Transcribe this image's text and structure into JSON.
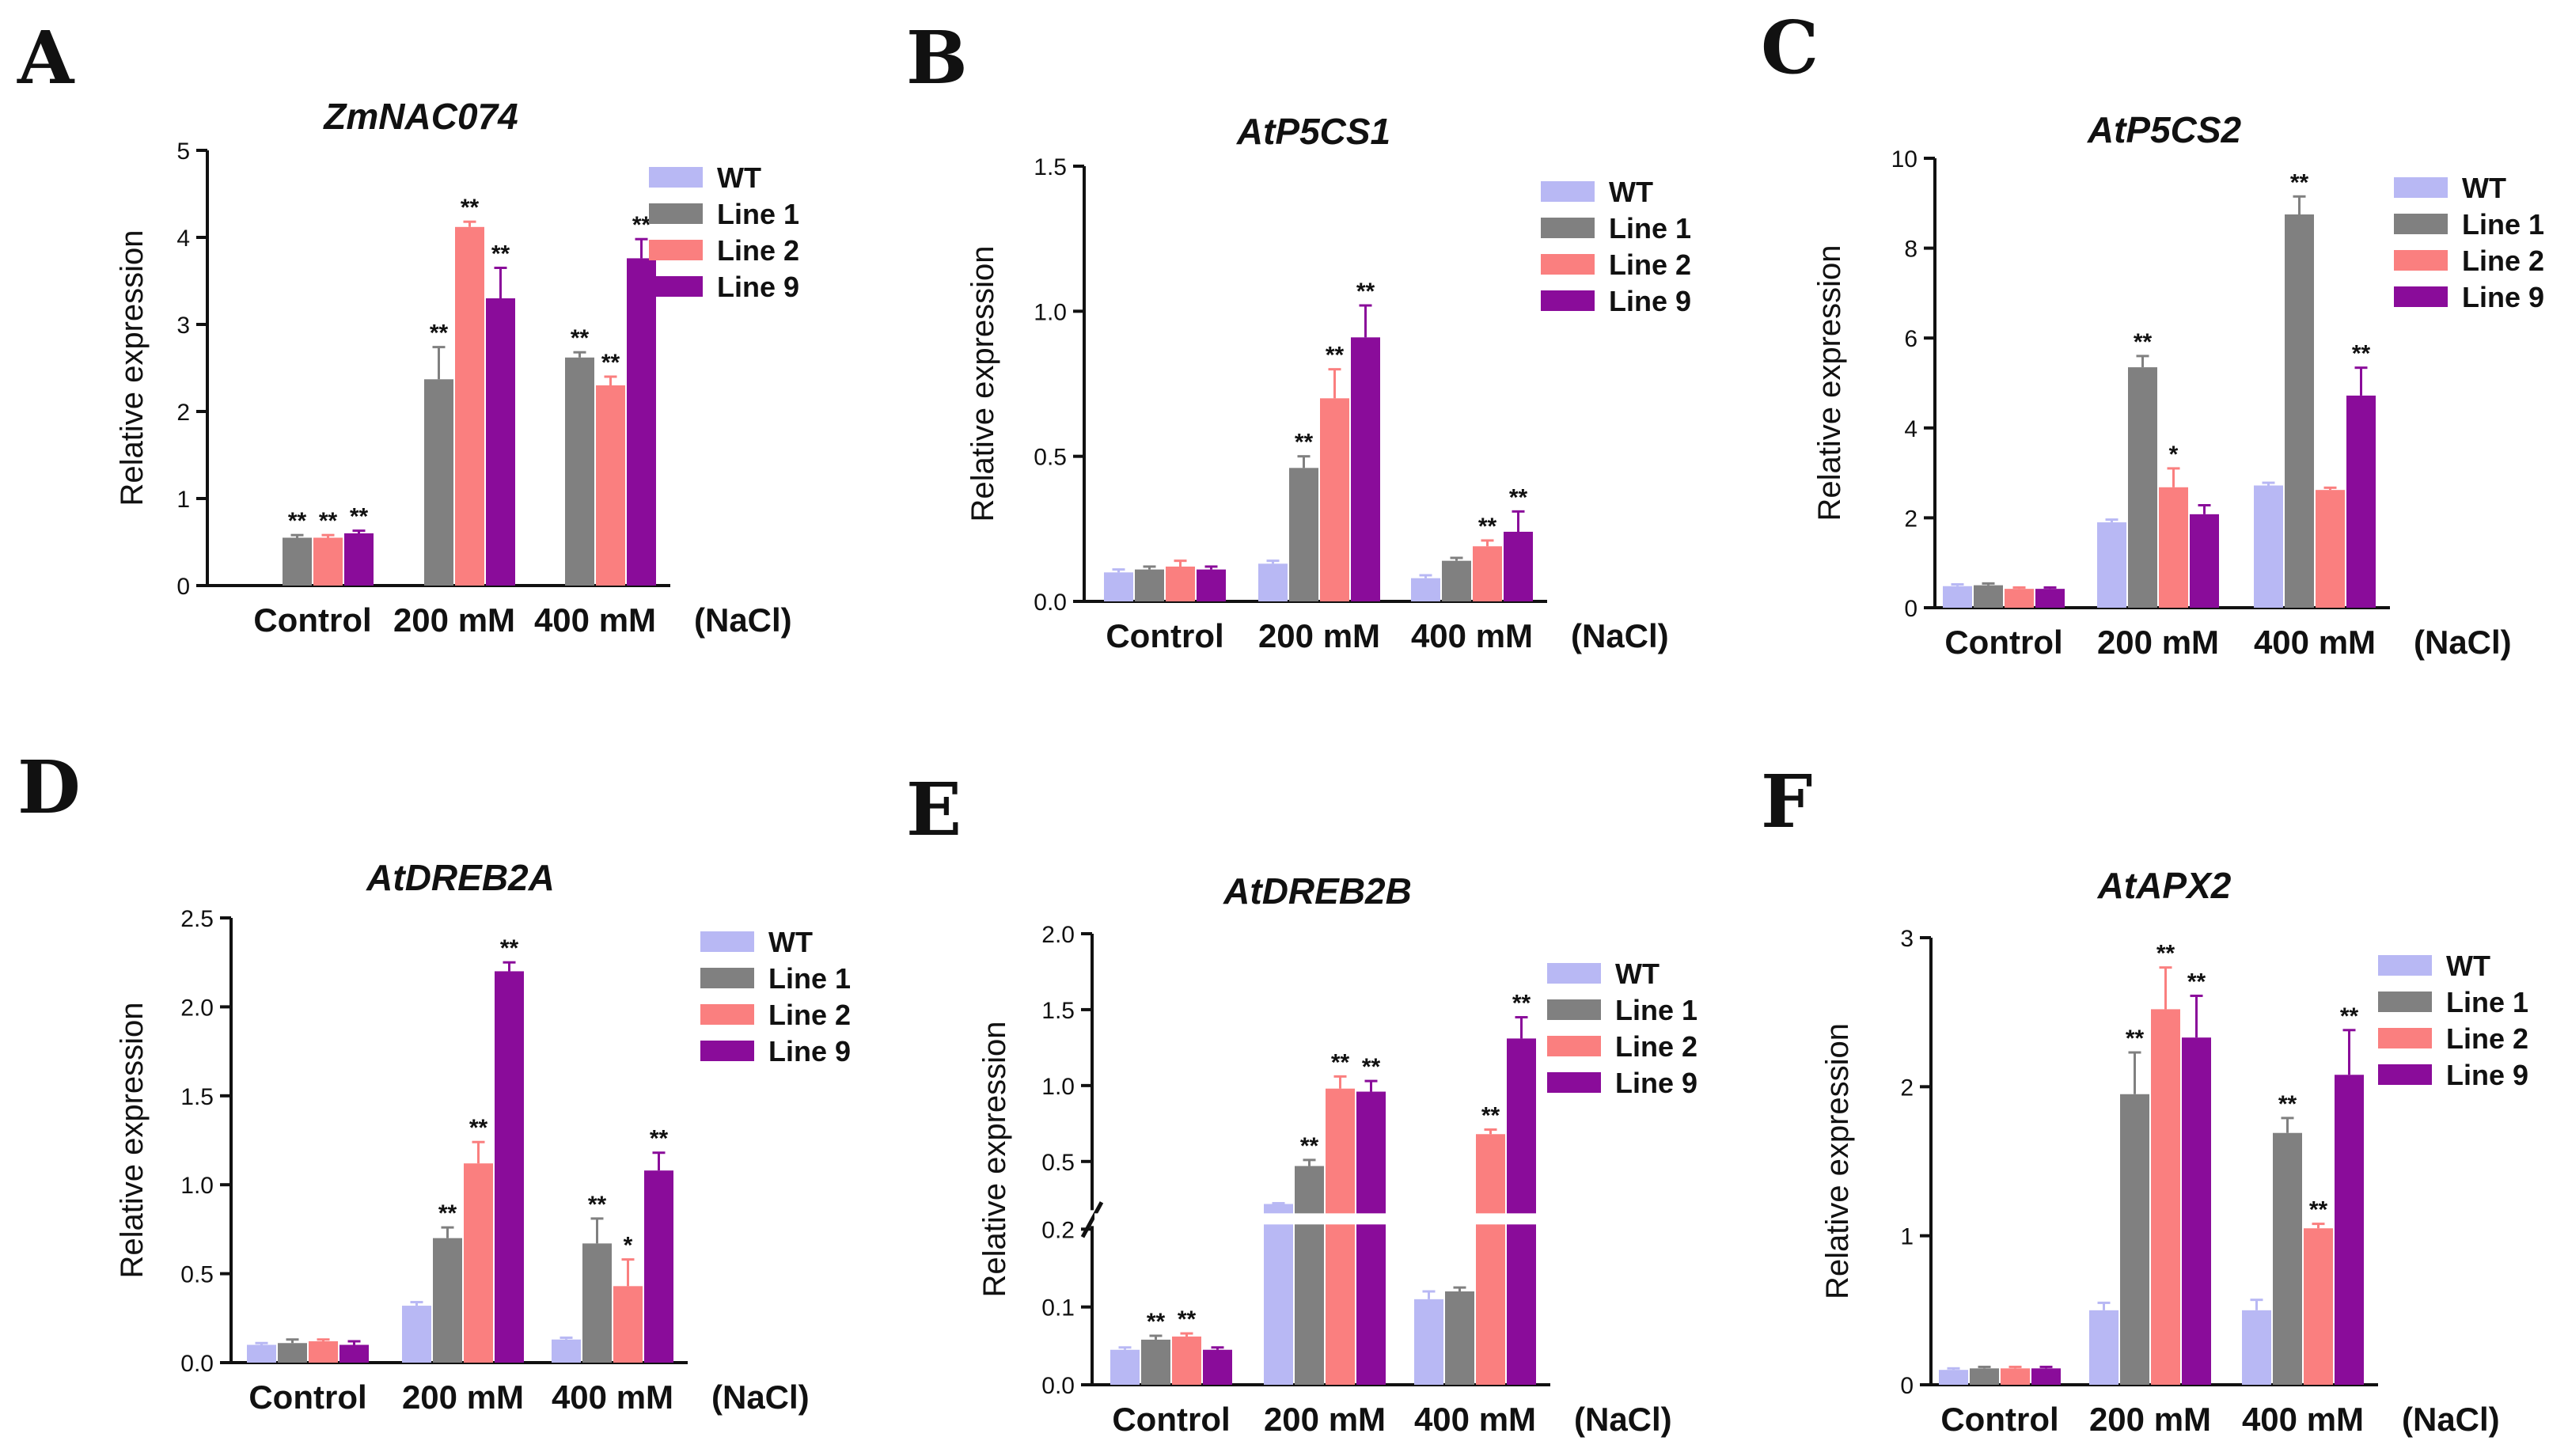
{
  "legend_series": [
    "WT",
    "Line 1",
    "Line 2",
    "Line 9"
  ],
  "colors": {
    "WT": "#b8b8f4",
    "Line 1": "#808080",
    "Line 2": "#fa7f7f",
    "Line 9": "#8a0c9a"
  },
  "chart_data": [
    {
      "letter": "A",
      "type": "bar",
      "title": "ZmNAC074",
      "ylabel": "Relative expression",
      "xunit": "(NaCl)",
      "categories": [
        "Control",
        "200 mM",
        "400 mM"
      ],
      "ylim": [
        0,
        5
      ],
      "yticks": [
        "0",
        "1",
        "2",
        "3",
        "4",
        "5"
      ],
      "series": [
        {
          "name": "WT",
          "values": [
            null,
            null,
            null
          ],
          "errors": [
            0,
            0,
            0
          ],
          "sig": [
            "",
            "",
            ""
          ]
        },
        {
          "name": "Line 1",
          "values": [
            0.55,
            2.37,
            2.62
          ],
          "errors": [
            0.03,
            0.37,
            0.06
          ],
          "sig": [
            "**",
            "**",
            "**"
          ]
        },
        {
          "name": "Line 2",
          "values": [
            0.55,
            4.12,
            2.3
          ],
          "errors": [
            0.03,
            0.06,
            0.1
          ],
          "sig": [
            "**",
            "**",
            "**"
          ]
        },
        {
          "name": "Line 9",
          "values": [
            0.6,
            3.3,
            3.76
          ],
          "errors": [
            0.03,
            0.35,
            0.22
          ],
          "sig": [
            "**",
            "**",
            "**"
          ]
        }
      ]
    },
    {
      "letter": "B",
      "type": "bar",
      "title": "AtP5CS1",
      "ylabel": "Relative expression",
      "xunit": "(NaCl)",
      "categories": [
        "Control",
        "200 mM",
        "400 mM"
      ],
      "ylim": [
        0,
        1.5
      ],
      "yticks": [
        "0.0",
        "0.5",
        "1.0",
        "1.5"
      ],
      "series": [
        {
          "name": "WT",
          "values": [
            0.1,
            0.13,
            0.08
          ],
          "errors": [
            0.01,
            0.01,
            0.01
          ],
          "sig": [
            "",
            "",
            ""
          ]
        },
        {
          "name": "Line 1",
          "values": [
            0.11,
            0.46,
            0.14
          ],
          "errors": [
            0.01,
            0.04,
            0.01
          ],
          "sig": [
            "",
            "**",
            ""
          ]
        },
        {
          "name": "Line 2",
          "values": [
            0.12,
            0.7,
            0.19
          ],
          "errors": [
            0.02,
            0.1,
            0.02
          ],
          "sig": [
            "",
            "**",
            "**"
          ]
        },
        {
          "name": "Line 9",
          "values": [
            0.11,
            0.91,
            0.24
          ],
          "errors": [
            0.01,
            0.11,
            0.07
          ],
          "sig": [
            "",
            "**",
            "**"
          ]
        }
      ]
    },
    {
      "letter": "C",
      "type": "bar",
      "title": "AtP5CS2",
      "ylabel": "Relative expression",
      "xunit": "(NaCl)",
      "categories": [
        "Control",
        "200 mM",
        "400 mM"
      ],
      "ylim": [
        0,
        10
      ],
      "yticks": [
        "0",
        "2",
        "4",
        "6",
        "8",
        "10"
      ],
      "series": [
        {
          "name": "WT",
          "values": [
            0.48,
            1.9,
            2.72
          ],
          "errors": [
            0.04,
            0.06,
            0.06
          ],
          "sig": [
            "",
            "",
            ""
          ]
        },
        {
          "name": "Line 1",
          "values": [
            0.5,
            5.35,
            8.75
          ],
          "errors": [
            0.04,
            0.25,
            0.4
          ],
          "sig": [
            "",
            "**",
            "**"
          ]
        },
        {
          "name": "Line 2",
          "values": [
            0.42,
            2.68,
            2.62
          ],
          "errors": [
            0.03,
            0.42,
            0.05
          ],
          "sig": [
            "",
            "*",
            ""
          ]
        },
        {
          "name": "Line 9",
          "values": [
            0.42,
            2.08,
            4.72
          ],
          "errors": [
            0.03,
            0.2,
            0.62
          ],
          "sig": [
            "",
            "",
            "**"
          ]
        }
      ]
    },
    {
      "letter": "D",
      "type": "bar",
      "title": "AtDREB2A",
      "ylabel": "Relative expression",
      "xunit": "(NaCl)",
      "categories": [
        "Control",
        "200 mM",
        "400 mM"
      ],
      "ylim": [
        0,
        2.5
      ],
      "yticks": [
        "0.0",
        "0.5",
        "1.0",
        "1.5",
        "2.0",
        "2.5"
      ],
      "series": [
        {
          "name": "WT",
          "values": [
            0.1,
            0.32,
            0.13
          ],
          "errors": [
            0.01,
            0.02,
            0.01
          ],
          "sig": [
            "",
            "",
            ""
          ]
        },
        {
          "name": "Line 1",
          "values": [
            0.11,
            0.7,
            0.67
          ],
          "errors": [
            0.02,
            0.06,
            0.14
          ],
          "sig": [
            "",
            "**",
            "**"
          ]
        },
        {
          "name": "Line 2",
          "values": [
            0.12,
            1.12,
            0.43
          ],
          "errors": [
            0.01,
            0.12,
            0.15
          ],
          "sig": [
            "",
            "**",
            "*"
          ]
        },
        {
          "name": "Line 9",
          "values": [
            0.1,
            2.2,
            1.08
          ],
          "errors": [
            0.02,
            0.05,
            0.1
          ],
          "sig": [
            "",
            "**",
            "**"
          ]
        }
      ]
    },
    {
      "letter": "E",
      "type": "bar",
      "title": "AtDREB2B",
      "broken_axis": true,
      "ylabel": "Relative expression",
      "xunit": "(NaCl)",
      "categories": [
        "Control",
        "200 mM",
        "400 mM"
      ],
      "ylim": [
        0,
        2.0
      ],
      "break_at": 0.2,
      "yticks_lower": [
        "0.0",
        "0.1",
        "0.2"
      ],
      "yticks_upper": [
        "0.5",
        "1.0",
        "1.5",
        "2.0"
      ],
      "series": [
        {
          "name": "WT",
          "values": [
            0.045,
            0.22,
            0.11
          ],
          "errors": [
            0.003,
            0.005,
            0.01
          ],
          "sig": [
            "",
            "",
            ""
          ]
        },
        {
          "name": "Line 1",
          "values": [
            0.058,
            0.47,
            0.12
          ],
          "errors": [
            0.005,
            0.04,
            0.005
          ],
          "sig": [
            "**",
            "**",
            ""
          ]
        },
        {
          "name": "Line 2",
          "values": [
            0.062,
            0.98,
            0.68
          ],
          "errors": [
            0.004,
            0.08,
            0.03
          ],
          "sig": [
            "**",
            "**",
            "**"
          ]
        },
        {
          "name": "Line 9",
          "values": [
            0.045,
            0.96,
            1.31
          ],
          "errors": [
            0.003,
            0.07,
            0.14
          ],
          "sig": [
            "",
            "**",
            "**"
          ]
        }
      ]
    },
    {
      "letter": "F",
      "type": "bar",
      "title": "AtAPX2",
      "ylabel": "Relative expression",
      "xunit": "(NaCl)",
      "categories": [
        "Control",
        "200 mM",
        "400 mM"
      ],
      "ylim": [
        0,
        3
      ],
      "yticks": [
        "0",
        "1",
        "2",
        "3"
      ],
      "series": [
        {
          "name": "WT",
          "values": [
            0.1,
            0.5,
            0.5
          ],
          "errors": [
            0.01,
            0.05,
            0.07
          ],
          "sig": [
            "",
            "",
            ""
          ]
        },
        {
          "name": "Line 1",
          "values": [
            0.11,
            1.95,
            1.69
          ],
          "errors": [
            0.01,
            0.28,
            0.1
          ],
          "sig": [
            "",
            "**",
            "**"
          ]
        },
        {
          "name": "Line 2",
          "values": [
            0.11,
            2.52,
            1.05
          ],
          "errors": [
            0.01,
            0.28,
            0.03
          ],
          "sig": [
            "",
            "**",
            "**"
          ]
        },
        {
          "name": "Line 9",
          "values": [
            0.11,
            2.33,
            2.08
          ],
          "errors": [
            0.01,
            0.28,
            0.3
          ],
          "sig": [
            "",
            "**",
            "**"
          ]
        }
      ]
    }
  ]
}
